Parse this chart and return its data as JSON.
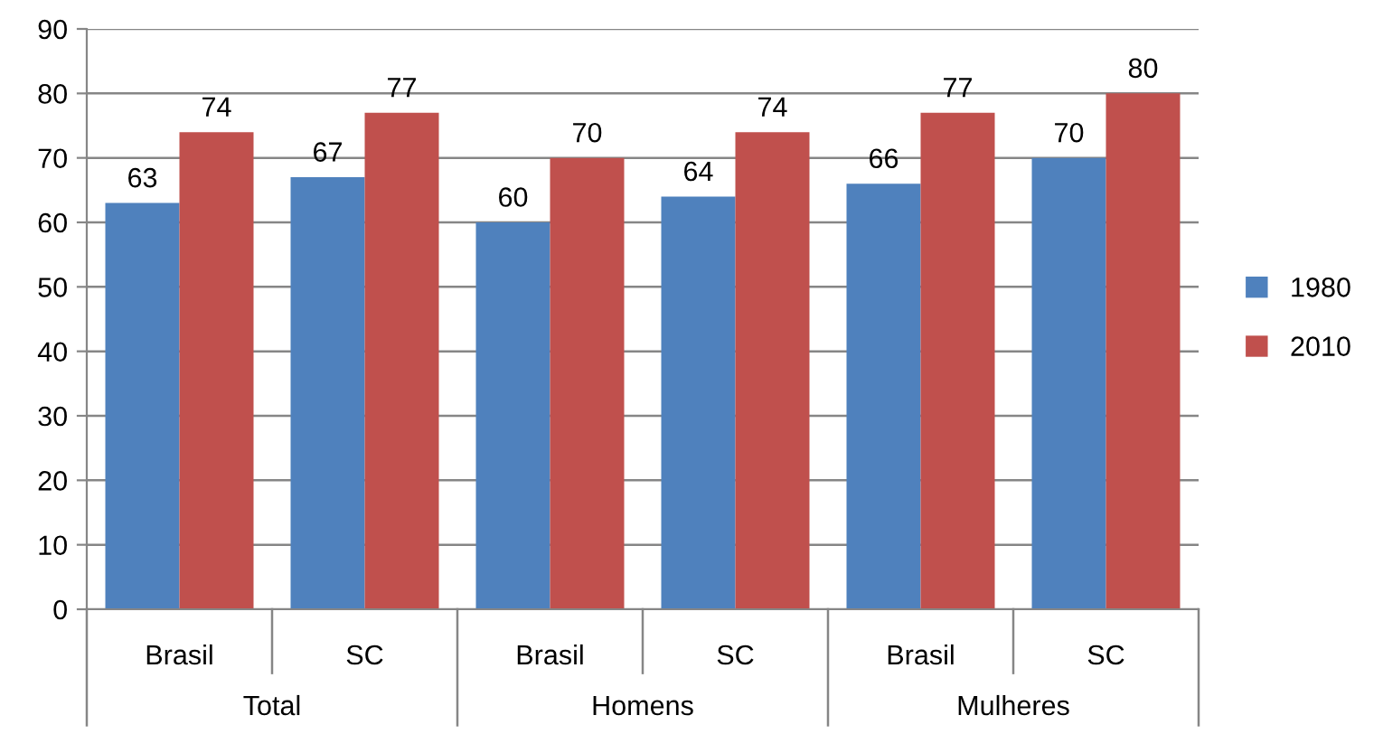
{
  "chart_data": {
    "type": "bar",
    "categories": [
      "Brasil",
      "SC",
      "Brasil",
      "SC",
      "Brasil",
      "SC"
    ],
    "annotations": [
      "Total",
      "Homens",
      "Mulheres"
    ],
    "series": [
      {
        "name": "1980",
        "color": "#4f81bd",
        "values": [
          63,
          67,
          60,
          64,
          66,
          70
        ]
      },
      {
        "name": "2010",
        "color": "#c0504d",
        "values": [
          74,
          77,
          70,
          74,
          77,
          80
        ]
      }
    ],
    "ylim": [
      0,
      90
    ],
    "yticks": [
      0,
      10,
      20,
      30,
      40,
      50,
      60,
      70,
      80,
      90
    ],
    "grid": "y",
    "legend": "right",
    "data_labels": true
  }
}
